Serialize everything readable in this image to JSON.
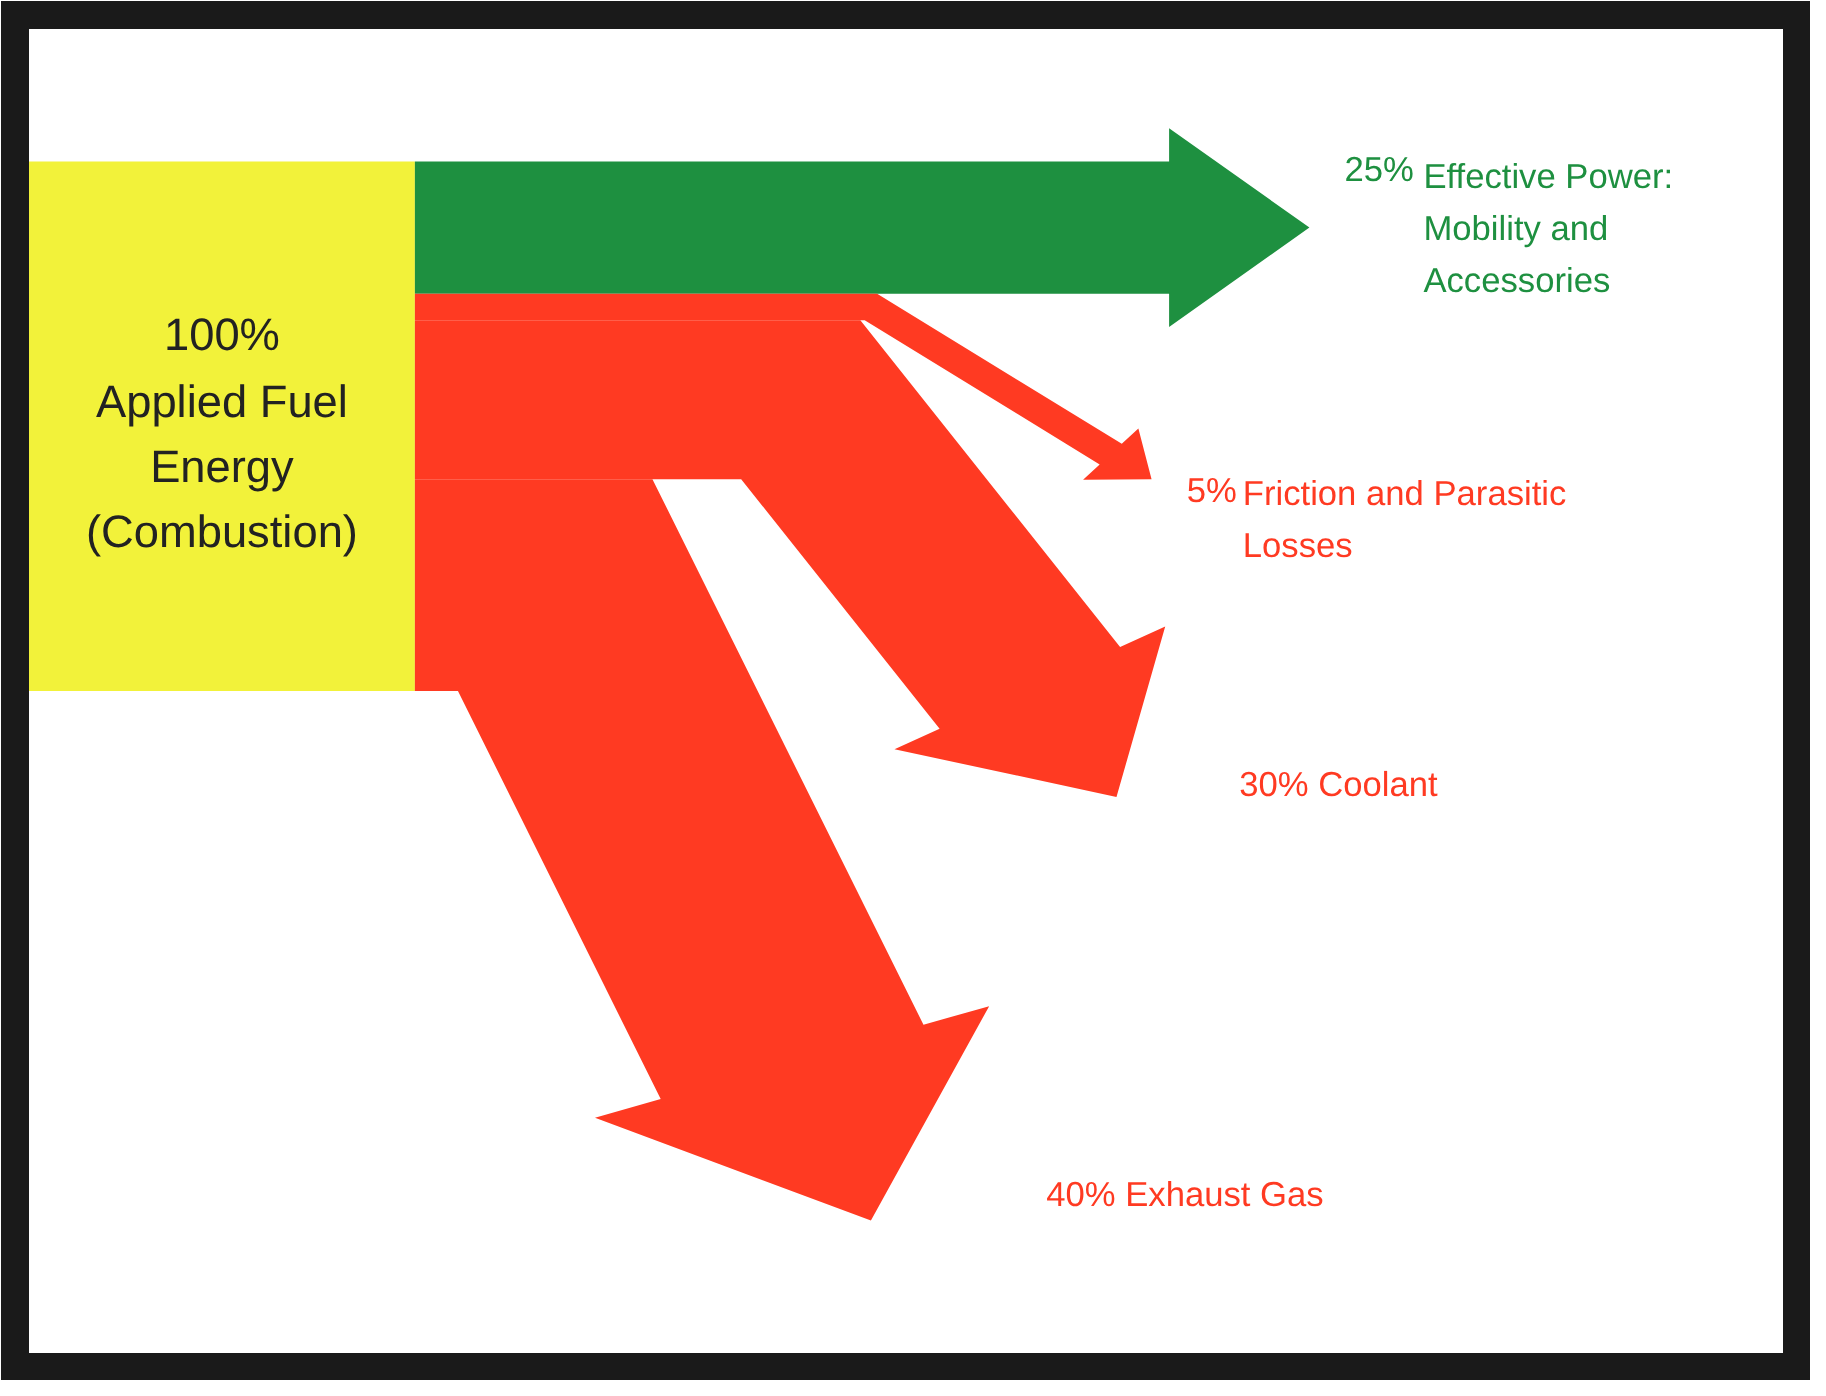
{
  "chart_data": {
    "type": "other",
    "categories": [
      "Applied Fuel Energy (Combustion)",
      "Effective Power: Mobility and Accessories",
      "Friction and Parasitic Losses",
      "Coolant",
      "Exhaust Gas"
    ],
    "values": [
      100,
      25,
      5,
      30,
      40
    ],
    "value_labels": [
      "100%",
      "25%",
      "5%",
      "30%",
      "40%"
    ],
    "colors": [
      "#f2f23a",
      "#1e9040",
      "#ff3a22",
      "#ff3a22",
      "#ff3a22"
    ]
  }
}
